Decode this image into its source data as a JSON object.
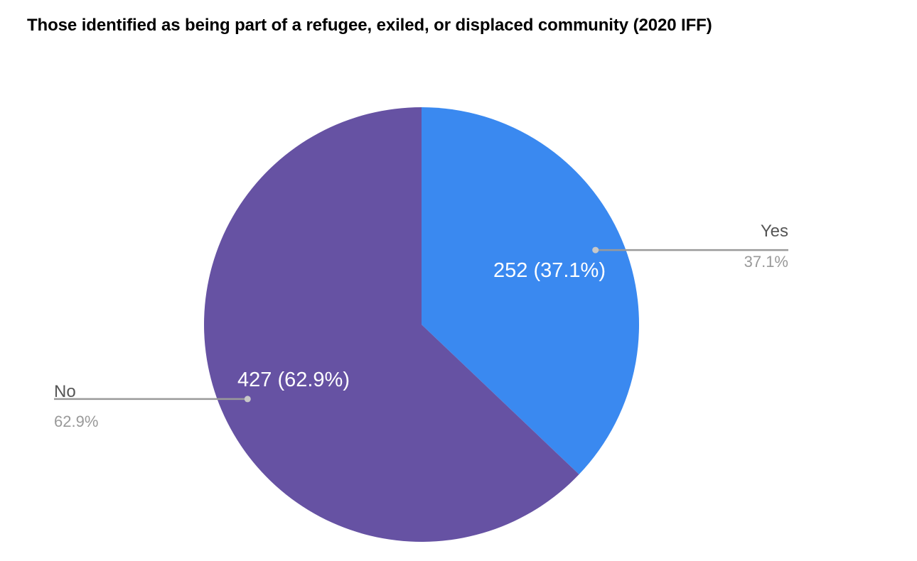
{
  "chart_data": {
    "type": "pie",
    "title": "Those identified as being part of a refugee, exiled, or displaced community (2020 IFF)",
    "slices": [
      {
        "name": "Yes",
        "value": 252,
        "percent": "37.1%",
        "color": "#3a89f0",
        "label": "252 (37.1%)"
      },
      {
        "name": "No",
        "value": 427,
        "percent": "62.9%",
        "color": "#6652a3",
        "label": "427 (62.9%)"
      }
    ],
    "start": "12 o'clock, clockwise",
    "legend": "callouts beside slices"
  }
}
